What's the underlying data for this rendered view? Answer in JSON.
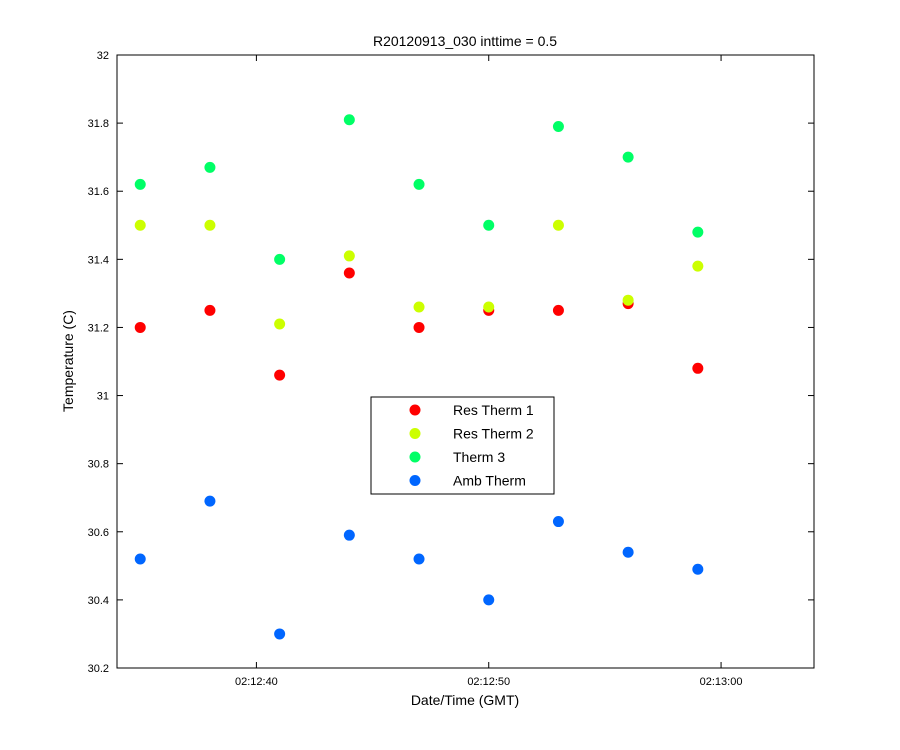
{
  "chart_data": {
    "type": "scatter",
    "title": "R20120913_030 inttime = 0.5",
    "xlabel": "Date/Time (GMT)",
    "ylabel": "Temperature (C)",
    "xlim": [
      "02:12:34",
      "02:13:04"
    ],
    "ylim": [
      30.2,
      32
    ],
    "x_ticks": [
      "02:12:40",
      "02:12:50",
      "02:13:00"
    ],
    "y_ticks": [
      "30.2",
      "30.4",
      "30.6",
      "30.8",
      "31",
      "31.2",
      "31.4",
      "31.6",
      "31.8",
      "32"
    ],
    "x": [
      "02:12:35",
      "02:12:38",
      "02:12:41",
      "02:12:44",
      "02:12:47",
      "02:12:50",
      "02:12:53",
      "02:12:56",
      "02:12:59"
    ],
    "grid": false,
    "legend": "center",
    "series": [
      {
        "name": "Res Therm 1",
        "color": "#ff0000",
        "values": [
          31.2,
          31.25,
          31.06,
          31.36,
          31.2,
          31.25,
          31.25,
          31.27,
          31.08
        ]
      },
      {
        "name": "Res Therm 2",
        "color": "#ccff00",
        "values": [
          31.5,
          31.5,
          31.21,
          31.41,
          31.26,
          31.26,
          31.5,
          31.28,
          31.38
        ]
      },
      {
        "name": "Therm 3",
        "color": "#00ff66",
        "values": [
          31.62,
          31.67,
          31.4,
          31.81,
          31.62,
          31.5,
          31.79,
          31.7,
          31.48
        ]
      },
      {
        "name": "Amb Therm",
        "color": "#0066ff",
        "values": [
          30.52,
          30.69,
          30.3,
          30.59,
          30.52,
          30.4,
          30.63,
          30.54,
          30.49
        ]
      }
    ]
  }
}
